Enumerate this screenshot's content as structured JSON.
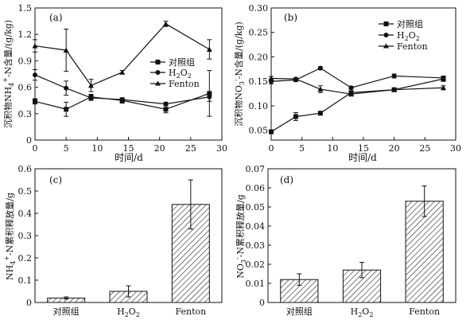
{
  "chart_data": [
    {
      "type": "line",
      "panel_label": "(a)",
      "xlabel": "时间/d",
      "ylabel": "沉积物NH4+-N含量/(g/kg)",
      "ylabel_main": "沉积物NH",
      "ylabel_sub": "4",
      "ylabel_sup": "+",
      "ylabel_tail": "-N含量/(g/kg)",
      "xlim": [
        0,
        30
      ],
      "ylim": [
        0,
        1.5
      ],
      "xticks": [
        "0",
        "5",
        "10",
        "15",
        "20",
        "25",
        "30"
      ],
      "yticks": [
        "0",
        "0.3",
        "0.6",
        "0.9",
        "1.2",
        "1.5"
      ],
      "legend_position": "middle-right",
      "series": [
        {
          "name": "对照组",
          "marker": "square",
          "x": [
            0,
            5,
            9,
            14,
            21,
            28
          ],
          "y": [
            0.44,
            0.35,
            0.49,
            0.45,
            0.35,
            0.53
          ],
          "err": [
            0.03,
            0.08,
            0.03,
            0.03,
            0.04,
            0.26
          ]
        },
        {
          "name": "H2O2",
          "name_main": "H",
          "name_sub": "2",
          "name_mid": "O",
          "name_sub2": "2",
          "marker": "circle",
          "x": [
            0,
            5,
            9,
            14,
            21,
            28
          ],
          "y": [
            0.74,
            0.59,
            0.48,
            0.46,
            0.41,
            0.49
          ],
          "err": [
            0.06,
            0.08,
            0.03,
            0.02,
            0.02,
            0.05
          ]
        },
        {
          "name": "Fenton",
          "marker": "triangle",
          "x": [
            0,
            5,
            9,
            14,
            21,
            28
          ],
          "y": [
            1.07,
            1.02,
            0.62,
            0.77,
            1.32,
            1.03
          ],
          "err": [
            0.07,
            0.24,
            0.07,
            0.02,
            0.03,
            0.11
          ]
        }
      ]
    },
    {
      "type": "line",
      "panel_label": "(b)",
      "xlabel": "时间/d",
      "ylabel": "沉积物NO3--N含量/(g/kg)",
      "ylabel_main": "沉积物NO",
      "ylabel_sub": "3",
      "ylabel_sup": "-",
      "ylabel_tail": "-N含量/(g/kg)",
      "xlim": [
        0,
        30
      ],
      "ylim": [
        0.03,
        0.3
      ],
      "xticks": [
        "0",
        "5",
        "10",
        "15",
        "20",
        "25",
        "30"
      ],
      "yticks": [
        "0.05",
        "0.10",
        "0.15",
        "0.20",
        "0.25",
        "0.30"
      ],
      "legend_position": "top-right",
      "series": [
        {
          "name": "对照组",
          "marker": "square",
          "x": [
            0,
            4,
            8,
            13,
            20,
            28
          ],
          "y": [
            0.047,
            0.078,
            0.085,
            0.127,
            0.133,
            0.155
          ],
          "err": [
            0.004,
            0.008,
            0.003,
            0.004,
            0.003,
            0.005
          ]
        },
        {
          "name": "H2O2",
          "name_main": "H",
          "name_sub": "2",
          "name_mid": "O",
          "name_sub2": "2",
          "marker": "circle",
          "x": [
            0,
            4,
            8,
            13,
            20,
            28
          ],
          "y": [
            0.15,
            0.153,
            0.177,
            0.137,
            0.161,
            0.157
          ],
          "err": [
            0.005,
            0.003,
            0.003,
            0.003,
            0.004,
            0.004
          ]
        },
        {
          "name": "Fenton",
          "marker": "triangle",
          "x": [
            0,
            4,
            8,
            13,
            20,
            28
          ],
          "y": [
            0.156,
            0.155,
            0.134,
            0.124,
            0.133,
            0.137
          ],
          "err": [
            0.004,
            0.003,
            0.007,
            0.003,
            0.003,
            0.004
          ]
        }
      ]
    },
    {
      "type": "bar",
      "panel_label": "(c)",
      "ylabel": "NH4+-N累积释放量/g",
      "ylabel_main": "NH",
      "ylabel_sub": "4",
      "ylabel_sup": "+",
      "ylabel_tail": "-N累积释放量/g",
      "categories": [
        "对照组",
        "H2O2",
        "Fenton"
      ],
      "ylim": [
        0,
        0.6
      ],
      "yticks": [
        "0",
        "0.1",
        "0.2",
        "0.3",
        "0.4",
        "0.5",
        "0.6"
      ],
      "values": [
        0.02,
        0.05,
        0.44
      ],
      "err": [
        0.005,
        0.025,
        0.11
      ]
    },
    {
      "type": "bar",
      "panel_label": "(d)",
      "ylabel": "NO3--N累积释放量/g",
      "ylabel_main": "NO",
      "ylabel_sub": "3",
      "ylabel_sup": "-",
      "ylabel_tail": "-N累积释放量/g",
      "categories": [
        "对照组",
        "H2O2",
        "Fenton"
      ],
      "ylim": [
        0,
        0.07
      ],
      "yticks": [
        "0",
        "0.01",
        "0.02",
        "0.03",
        "0.04",
        "0.05",
        "0.06",
        "0.07"
      ],
      "values": [
        0.012,
        0.017,
        0.053
      ],
      "err": [
        0.003,
        0.004,
        0.008
      ]
    }
  ]
}
